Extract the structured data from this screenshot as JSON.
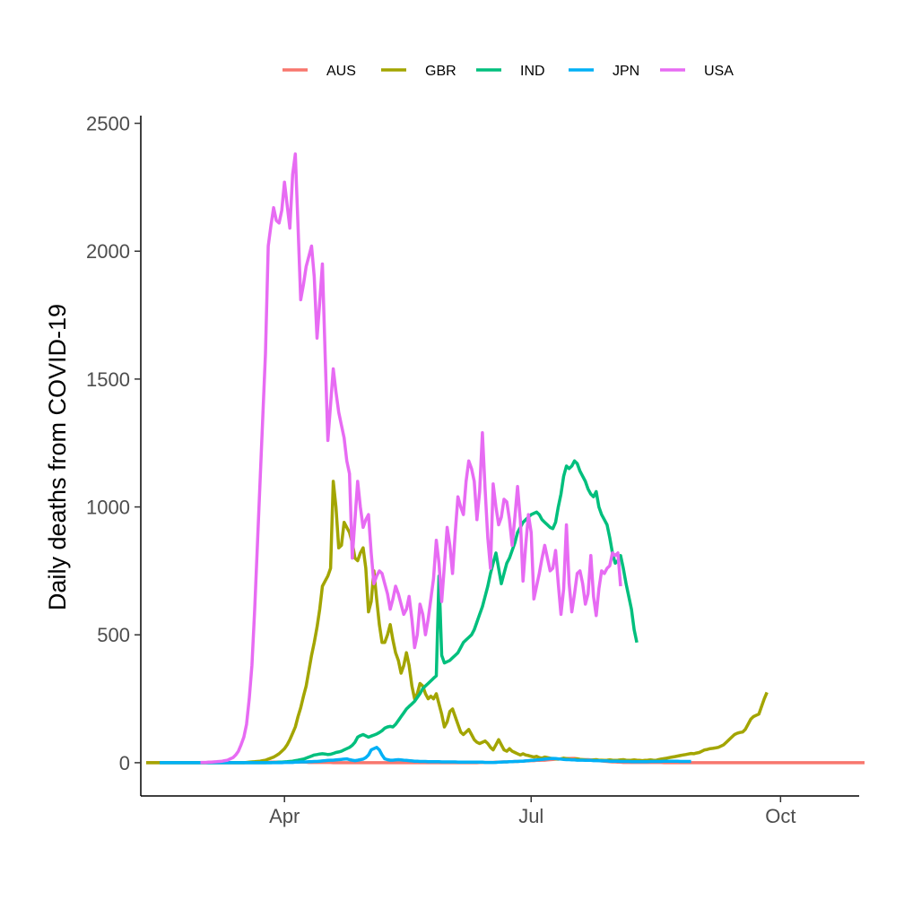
{
  "chart_data": {
    "type": "line",
    "title": "",
    "xlabel": "",
    "ylabel": "Daily deaths from COVID-19",
    "x_ticks": [
      {
        "label": "Apr",
        "date": "2020-04-01"
      },
      {
        "label": "Jul",
        "date": "2020-07-01"
      },
      {
        "label": "Oct",
        "date": "2020-10-01"
      }
    ],
    "xlim": [
      "2020-02-08",
      "2020-10-30"
    ],
    "ylim": [
      -130,
      2530
    ],
    "y_ticks": [
      0,
      500,
      1000,
      1500,
      2000,
      2500
    ],
    "y_tick_labels": [
      "0",
      "500",
      "1000",
      "1500",
      "2000",
      "2500"
    ],
    "grid": false,
    "legend_position": "top",
    "series": [
      {
        "name": "AUS",
        "color": "#F8766D",
        "start": "2020-02-10",
        "values": [
          0,
          0,
          0,
          0,
          0,
          0,
          0,
          0,
          0,
          0,
          0,
          0,
          0,
          0,
          0,
          0,
          0,
          0,
          0,
          0,
          0,
          0,
          0,
          0,
          0,
          0,
          0,
          0,
          0,
          0,
          0,
          0,
          0,
          0,
          0,
          0,
          0,
          0,
          0,
          0,
          0,
          0,
          0,
          0,
          0,
          1,
          2,
          2,
          2,
          2,
          2,
          2,
          2,
          2,
          2,
          2,
          2,
          2,
          2,
          2,
          1,
          1,
          1,
          1,
          1,
          1,
          1,
          1,
          1,
          0,
          0,
          0,
          0,
          0,
          0,
          0,
          0,
          0,
          0,
          0,
          0,
          0,
          0,
          0,
          0,
          0,
          0,
          0,
          0,
          0,
          0,
          0,
          0,
          0,
          0,
          0,
          0,
          0,
          0,
          0,
          0,
          0,
          0,
          0,
          0,
          0,
          0,
          0,
          0,
          0,
          0,
          0,
          0,
          0,
          0,
          0,
          0,
          0,
          0,
          0,
          0,
          0,
          0,
          1,
          1,
          1,
          1,
          1,
          1,
          2,
          2,
          3,
          3,
          3,
          4,
          4,
          5,
          5,
          6,
          6,
          7,
          7,
          8,
          8,
          9,
          9,
          10,
          10,
          11,
          12,
          13,
          14,
          14,
          15,
          15,
          16,
          16,
          17,
          17,
          15,
          13,
          12,
          12,
          12,
          11,
          10,
          9,
          8,
          7,
          6,
          5,
          4,
          3,
          3,
          2,
          2,
          1,
          1,
          1,
          1,
          1,
          1,
          1,
          1,
          1,
          1,
          1,
          1,
          1,
          1,
          1,
          0,
          0,
          0,
          0,
          0,
          0,
          0,
          0,
          0,
          0,
          0,
          0,
          0,
          0,
          0,
          0,
          0,
          0,
          0,
          0,
          0,
          0,
          0,
          0,
          0,
          0,
          0,
          0,
          0,
          0,
          0,
          0,
          0,
          0,
          0,
          0,
          0,
          0,
          0,
          0,
          0,
          0,
          0,
          0,
          0,
          0,
          0,
          0,
          0,
          0,
          0,
          0,
          0,
          0,
          0,
          0,
          0,
          0,
          0,
          0,
          0,
          0,
          0,
          0,
          0,
          0,
          0,
          0,
          0,
          0,
          0,
          0,
          0,
          0,
          0
        ]
      },
      {
        "name": "GBR",
        "color": "#A3A500",
        "start": "2020-02-10",
        "values": [
          0,
          0,
          0,
          0,
          0,
          0,
          0,
          0,
          0,
          0,
          0,
          0,
          0,
          0,
          0,
          0,
          0,
          0,
          0,
          0,
          0,
          0,
          0,
          0,
          0,
          0,
          0,
          0,
          0,
          0,
          0,
          0,
          0,
          0,
          0,
          0,
          0,
          1,
          2,
          3,
          4,
          5,
          6,
          8,
          10,
          14,
          18,
          22,
          28,
          35,
          45,
          55,
          70,
          90,
          115,
          140,
          180,
          215,
          260,
          300,
          360,
          420,
          470,
          530,
          600,
          690,
          710,
          730,
          760,
          1100,
          1000,
          840,
          850,
          940,
          920,
          900,
          860,
          800,
          790,
          820,
          840,
          760,
          590,
          630,
          750,
          640,
          540,
          470,
          470,
          500,
          540,
          480,
          430,
          400,
          350,
          380,
          430,
          380,
          300,
          250,
          270,
          310,
          300,
          270,
          250,
          260,
          250,
          270,
          230,
          190,
          140,
          160,
          200,
          210,
          180,
          150,
          120,
          110,
          120,
          130,
          110,
          90,
          80,
          75,
          80,
          85,
          75,
          60,
          50,
          70,
          90,
          70,
          50,
          45,
          55,
          45,
          40,
          35,
          30,
          35,
          30,
          28,
          25,
          22,
          25,
          20,
          18,
          22,
          20,
          18,
          16,
          15,
          14,
          15,
          18,
          16,
          14,
          12,
          13,
          15,
          13,
          12,
          11,
          10,
          10,
          11,
          12,
          10,
          10,
          9,
          10,
          11,
          10,
          9,
          10,
          11,
          12,
          10,
          9,
          10,
          11,
          10,
          9,
          8,
          9,
          10,
          11,
          10,
          9,
          12,
          14,
          16,
          18,
          20,
          22,
          24,
          26,
          28,
          30,
          32,
          34,
          36,
          35,
          38,
          40,
          45,
          50,
          52,
          55,
          56,
          58,
          60,
          65,
          70,
          80,
          90,
          100,
          110,
          115,
          118,
          120,
          130,
          150,
          170,
          180,
          185,
          190,
          220,
          250,
          275
        ]
      },
      {
        "name": "IND",
        "color": "#00BF7D",
        "start": "2020-02-15",
        "values": [
          0,
          0,
          0,
          0,
          0,
          0,
          0,
          0,
          0,
          0,
          0,
          0,
          0,
          0,
          0,
          0,
          0,
          0,
          0,
          0,
          0,
          0,
          0,
          0,
          0,
          0,
          0,
          0,
          0,
          0,
          0,
          0,
          0,
          0,
          0,
          0,
          0,
          0,
          0,
          0,
          0,
          0,
          1,
          1,
          2,
          2,
          3,
          4,
          5,
          6,
          8,
          10,
          12,
          14,
          18,
          22,
          26,
          30,
          32,
          34,
          35,
          34,
          32,
          33,
          36,
          40,
          42,
          45,
          50,
          55,
          60,
          68,
          80,
          100,
          106,
          110,
          105,
          100,
          104,
          108,
          112,
          118,
          125,
          135,
          140,
          142,
          140,
          150,
          165,
          180,
          195,
          210,
          220,
          230,
          240,
          255,
          270,
          290,
          300,
          310,
          320,
          330,
          340,
          730,
          420,
          390,
          395,
          400,
          410,
          420,
          430,
          450,
          470,
          480,
          490,
          500,
          520,
          550,
          580,
          610,
          650,
          690,
          740,
          780,
          820,
          760,
          700,
          740,
          780,
          800,
          830,
          860,
          900,
          920,
          940,
          950,
          960,
          970,
          975,
          980,
          970,
          950,
          940,
          930,
          920,
          915,
          940,
          1000,
          1050,
          1120,
          1160,
          1150,
          1160,
          1180,
          1170,
          1140,
          1120,
          1100,
          1070,
          1050,
          1040,
          1060,
          1000,
          970,
          950,
          930,
          880,
          820,
          780,
          790,
          810,
          760,
          700,
          650,
          600,
          520,
          470
        ]
      },
      {
        "name": "JPN",
        "color": "#00B0F6",
        "start": "2020-02-15",
        "values": [
          0,
          0,
          0,
          0,
          0,
          0,
          0,
          0,
          0,
          0,
          0,
          0,
          0,
          0,
          0,
          0,
          0,
          0,
          0,
          0,
          0,
          0,
          0,
          0,
          0,
          0,
          0,
          0,
          0,
          0,
          0,
          0,
          0,
          0,
          0,
          0,
          0,
          0,
          0,
          0,
          0,
          0,
          0,
          0,
          0,
          0,
          1,
          1,
          1,
          1,
          2,
          2,
          3,
          3,
          3,
          4,
          4,
          5,
          5,
          6,
          7,
          8,
          9,
          10,
          10,
          11,
          12,
          13,
          14,
          15,
          12,
          10,
          8,
          10,
          12,
          14,
          20,
          30,
          50,
          55,
          60,
          50,
          30,
          15,
          12,
          10,
          10,
          11,
          12,
          11,
          10,
          9,
          8,
          7,
          6,
          6,
          5,
          5,
          5,
          4,
          4,
          4,
          4,
          4,
          3,
          3,
          3,
          3,
          3,
          3,
          2,
          2,
          2,
          2,
          2,
          2,
          2,
          2,
          2,
          2,
          1,
          1,
          1,
          1,
          1,
          2,
          2,
          3,
          3,
          4,
          4,
          5,
          5,
          6,
          6,
          7,
          8,
          9,
          10,
          11,
          12,
          13,
          14,
          15,
          16,
          17,
          16,
          15,
          14,
          13,
          12,
          12,
          11,
          11,
          10,
          10,
          10,
          9,
          9,
          9,
          8,
          8,
          8,
          7,
          7,
          7,
          6,
          6,
          6,
          6,
          5,
          5,
          5,
          5,
          4,
          4,
          4,
          4,
          4,
          4,
          4,
          5,
          5,
          5,
          5,
          5,
          6,
          6,
          6,
          6,
          6,
          6,
          5,
          5,
          5,
          5,
          5
        ]
      },
      {
        "name": "USA",
        "color": "#E76BF3",
        "start": "2020-03-01",
        "values": [
          1,
          1,
          1,
          2,
          2,
          3,
          4,
          5,
          6,
          8,
          10,
          15,
          20,
          30,
          45,
          70,
          100,
          150,
          250,
          380,
          600,
          850,
          1100,
          1350,
          1600,
          2020,
          2100,
          2170,
          2120,
          2110,
          2160,
          2270,
          2180,
          2090,
          2300,
          2380,
          2100,
          1810,
          1870,
          1940,
          1980,
          2020,
          1900,
          1660,
          1800,
          1950,
          1600,
          1260,
          1400,
          1540,
          1450,
          1370,
          1320,
          1270,
          1180,
          1130,
          800,
          950,
          1100,
          1000,
          920,
          950,
          970,
          820,
          700,
          730,
          750,
          740,
          700,
          660,
          600,
          640,
          690,
          660,
          620,
          580,
          600,
          650,
          560,
          450,
          500,
          620,
          580,
          500,
          560,
          640,
          720,
          870,
          780,
          630,
          770,
          920,
          850,
          740,
          900,
          1040,
          1000,
          970,
          1100,
          1180,
          1150,
          1100,
          950,
          1060,
          1290,
          1070,
          880,
          760,
          1090,
          1000,
          930,
          960,
          1030,
          1020,
          950,
          850,
          960,
          1080,
          950,
          710,
          850,
          970,
          900,
          640,
          690,
          740,
          800,
          850,
          800,
          750,
          760,
          830,
          700,
          580,
          680,
          930,
          700,
          590,
          660,
          740,
          750,
          700,
          620,
          660,
          810,
          650,
          575,
          680,
          750,
          740,
          760,
          770,
          820,
          810,
          820,
          690
        ]
      }
    ]
  }
}
